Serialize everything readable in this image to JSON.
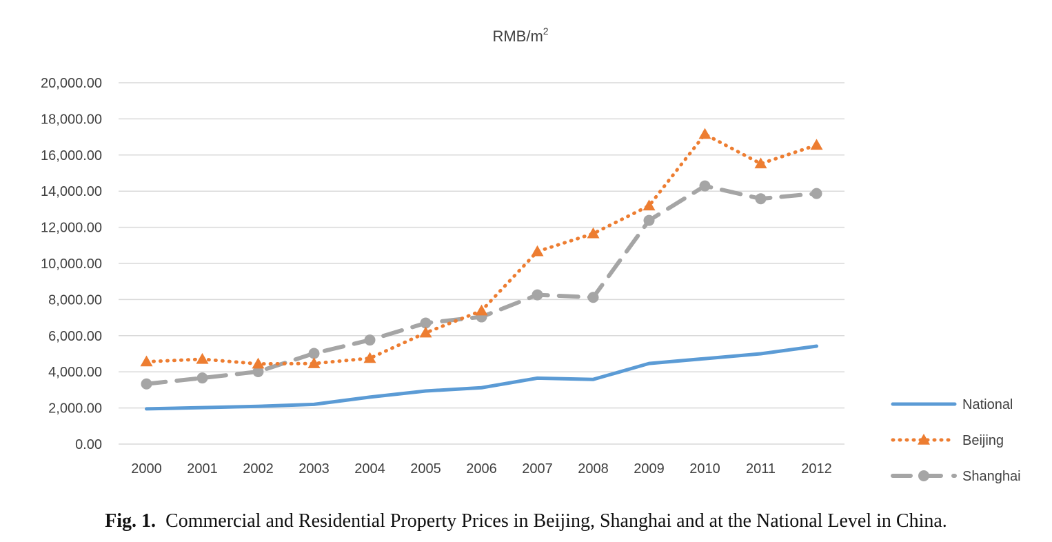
{
  "chart_data": {
    "type": "line",
    "title": "",
    "ylabel": "RMB/m",
    "ylabel_superscript": "2",
    "xlabel": "",
    "ylim": [
      0,
      20000
    ],
    "y_ticks": [
      "0.00",
      "2,000.00",
      "4,000.00",
      "6,000.00",
      "8,000.00",
      "10,000.00",
      "12,000.00",
      "14,000.00",
      "16,000.00",
      "18,000.00",
      "20,000.00"
    ],
    "categories": [
      "2000",
      "2001",
      "2002",
      "2003",
      "2004",
      "2005",
      "2006",
      "2007",
      "2008",
      "2009",
      "2010",
      "2011",
      "2012"
    ],
    "grid": true,
    "legend_position": "right",
    "series": [
      {
        "name": "National",
        "color": "#5B9BD5",
        "style": "solid",
        "marker": "none",
        "values": [
          1950,
          2020,
          2090,
          2200,
          2600,
          2940,
          3120,
          3650,
          3580,
          4460,
          4730,
          5000,
          5420
        ]
      },
      {
        "name": "Beijing",
        "color": "#ED7D31",
        "style": "dotted",
        "marker": "triangle",
        "values": [
          4560,
          4700,
          4440,
          4460,
          4750,
          6160,
          7380,
          10660,
          11650,
          13190,
          17150,
          15520,
          16550
        ]
      },
      {
        "name": "Shanghai",
        "color": "#A5A5A5",
        "style": "dashed",
        "marker": "circle",
        "values": [
          3330,
          3660,
          4010,
          5020,
          5760,
          6700,
          7040,
          8260,
          8120,
          12380,
          14290,
          13580,
          13870
        ]
      }
    ]
  },
  "caption": {
    "prefix": "Fig. 1.",
    "text": "Commercial and Residential Property Prices in Beijing, Shanghai and at the National Level in China."
  }
}
